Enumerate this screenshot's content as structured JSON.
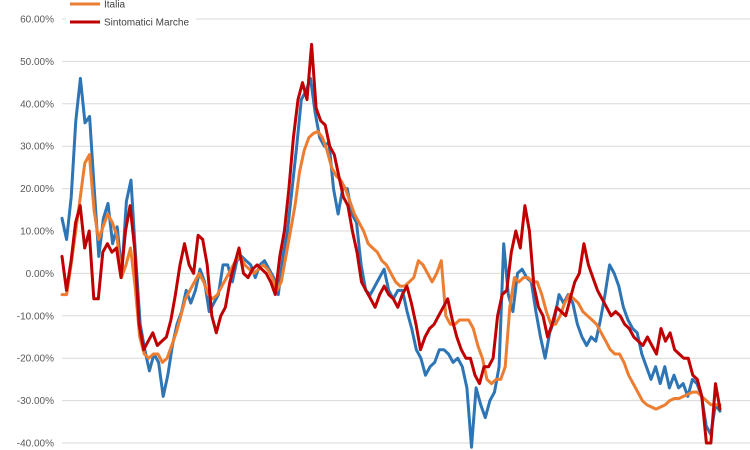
{
  "chart_data": {
    "type": "line",
    "title": "",
    "xlabel": "",
    "ylabel": "",
    "ylim": [
      -40,
      60
    ],
    "y_ticks": [
      60,
      50,
      40,
      30,
      20,
      10,
      0,
      -10,
      -20,
      -30,
      -40
    ],
    "y_tick_labels": [
      "60.00%",
      "50.00%",
      "40.00%",
      "30.00%",
      "20.00%",
      "10.00%",
      "0.00%",
      "-10.00%",
      "-20.00%",
      "-30.00%",
      "-40.00%"
    ],
    "y_unit": "%",
    "gridlines": true,
    "legend_position": "top-left",
    "legend": [
      "Italia",
      "Sintomatici Marche"
    ],
    "series": [
      {
        "name": "",
        "color": "#2E75B6",
        "values": [
          13,
          8,
          18,
          36,
          46,
          35.5,
          37,
          20,
          4,
          13,
          16.5,
          7,
          11,
          0,
          17,
          22,
          4,
          -12,
          -18,
          -23,
          -19,
          -21,
          -29,
          -24,
          -17,
          -12,
          -9,
          -4,
          -7,
          -4,
          1,
          -2,
          -9,
          -7,
          -5,
          2,
          2,
          -2,
          3,
          4,
          3,
          2,
          -1,
          2,
          3,
          1,
          -1,
          -5,
          4,
          10,
          20,
          30,
          41,
          43,
          46,
          38,
          32,
          30,
          31,
          20,
          14,
          20,
          20,
          14,
          12,
          2,
          -4,
          -5,
          -3,
          -1,
          1,
          -4,
          -6,
          -4,
          -4,
          -9,
          -13,
          -18,
          -20,
          -24,
          -22,
          -21,
          -18,
          -18,
          -19,
          -21,
          -20,
          -22,
          -27,
          -41,
          -27,
          -31,
          -34,
          -30,
          -28,
          -22,
          7,
          -5,
          -9,
          0,
          1,
          -1,
          -2,
          -9,
          -15,
          -20,
          -14,
          -11,
          -5,
          -7,
          -5,
          -7,
          -12,
          -15,
          -17,
          -15,
          -16,
          -11,
          -5,
          2,
          0,
          -3,
          -8,
          -11,
          -13,
          -14,
          -19,
          -22,
          -25,
          -22,
          -26,
          -22,
          -27,
          -24,
          -27,
          -26,
          -29,
          -25,
          -26,
          -29,
          -36,
          -38,
          -31,
          -32.5
        ]
      },
      {
        "name": "Italia",
        "color": "#ED7D31",
        "values": [
          -5,
          -5,
          2,
          10,
          18,
          26,
          28,
          15,
          8,
          11,
          14,
          12,
          9,
          -1,
          2,
          6,
          -3,
          -15,
          -19,
          -20,
          -19,
          -19,
          -21,
          -20,
          -17,
          -14,
          -10,
          -6,
          -4,
          -2,
          0,
          -2,
          -5,
          -6,
          -5,
          -3,
          -1,
          1,
          3,
          4,
          2,
          1,
          0,
          1,
          2,
          1,
          -1,
          -4,
          -2,
          4,
          10,
          16,
          24,
          29,
          32,
          33,
          33.5,
          32,
          29,
          25,
          23,
          22,
          20,
          17,
          14,
          12,
          10,
          7,
          6,
          5,
          3,
          2,
          0,
          -2,
          -3,
          -3,
          -2,
          -1,
          3,
          2,
          0,
          -2,
          0,
          3,
          -10,
          -12,
          -12,
          -11,
          -11,
          -11,
          -13,
          -17,
          -20,
          -25,
          -26,
          -25,
          -25,
          -22,
          -8,
          -1,
          -2,
          -1,
          -1,
          -2,
          -2,
          -5,
          -9,
          -12,
          -12,
          -10,
          -7,
          -5,
          -6,
          -7,
          -9,
          -10,
          -11,
          -12,
          -14,
          -16,
          -18,
          -19,
          -19,
          -21,
          -24,
          -26,
          -28,
          -30,
          -31,
          -31.5,
          -32,
          -31.5,
          -31,
          -30,
          -29.5,
          -29.5,
          -29,
          -28.5,
          -28,
          -28,
          -29,
          -30,
          -31,
          -31,
          -31
        ]
      },
      {
        "name": "Sintomatici Marche",
        "color": "#C00000",
        "values": [
          4,
          -4,
          3,
          12,
          16,
          6,
          10,
          -6,
          -6,
          5,
          7,
          5,
          6,
          -1,
          10,
          16,
          6,
          -12,
          -18,
          -16,
          -14,
          -17,
          -16,
          -15,
          -11,
          -5,
          2,
          7,
          2,
          0,
          9,
          8,
          2,
          -10,
          -14,
          -10,
          -8,
          -2,
          2,
          6,
          0,
          -1,
          1,
          2,
          1,
          0,
          -2,
          -5,
          4,
          10,
          20,
          32,
          41,
          45,
          41,
          54,
          39,
          36,
          35,
          30,
          28,
          23,
          18,
          16,
          10,
          5,
          -2,
          -4,
          -6,
          -8,
          -5,
          -3,
          -5,
          -6,
          -8,
          -5,
          -3,
          -7,
          -12,
          -18,
          -15,
          -13,
          -12,
          -10,
          -8,
          -6,
          -11,
          -15,
          -18,
          -20,
          -20,
          -24,
          -26,
          -22,
          -22,
          -20,
          -10,
          -5,
          -4,
          5,
          10,
          6,
          16,
          10,
          -3,
          -8,
          -10,
          -15,
          -12,
          -8,
          -9,
          -10,
          -6,
          -2,
          0,
          7,
          2,
          -1,
          -4,
          -6,
          -8,
          -10,
          -9,
          -10,
          -12,
          -13,
          -15,
          -16,
          -17,
          -15,
          -17,
          -19,
          -13,
          -16,
          -14,
          -18,
          -19,
          -20,
          -20,
          -24,
          -25,
          -29,
          -40,
          -40,
          -26,
          -32
        ]
      }
    ]
  }
}
